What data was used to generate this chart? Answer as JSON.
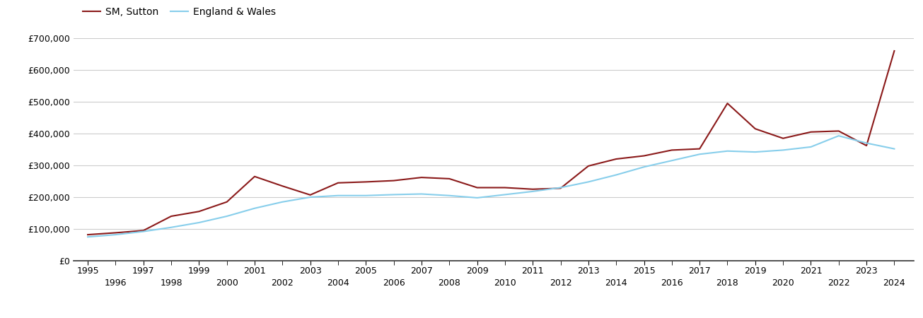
{
  "title": "",
  "legend_labels": [
    "SM, Sutton",
    "England & Wales"
  ],
  "line_colors": [
    "#8B1A1A",
    "#87CEEB"
  ],
  "background_color": "#ffffff",
  "grid_color": "#cccccc",
  "ylabel": "",
  "xlabel": "",
  "ylim": [
    0,
    700000
  ],
  "ytick_values": [
    0,
    100000,
    200000,
    300000,
    400000,
    500000,
    600000,
    700000
  ],
  "ytick_labels": [
    "£0",
    "£100,000",
    "£200,000",
    "£300,000",
    "£400,000",
    "£500,000",
    "£600,000",
    "£700,000"
  ],
  "x_major_ticks": [
    1995,
    1997,
    1999,
    2001,
    2003,
    2005,
    2007,
    2009,
    2011,
    2013,
    2015,
    2017,
    2019,
    2021,
    2023
  ],
  "x_minor_ticks": [
    1996,
    1998,
    2000,
    2002,
    2004,
    2006,
    2008,
    2010,
    2012,
    2014,
    2016,
    2018,
    2020,
    2022,
    2024
  ],
  "sutton_years": [
    1995,
    1996,
    1997,
    1998,
    1999,
    2000,
    2001,
    2002,
    2003,
    2004,
    2005,
    2006,
    2007,
    2008,
    2009,
    2010,
    2011,
    2012,
    2013,
    2014,
    2015,
    2016,
    2017,
    2018,
    2019,
    2020,
    2021,
    2022,
    2023,
    2024
  ],
  "sutton_values": [
    82000,
    88000,
    95000,
    140000,
    155000,
    185000,
    265000,
    235000,
    207000,
    245000,
    248000,
    252000,
    262000,
    258000,
    230000,
    230000,
    225000,
    228000,
    298000,
    320000,
    330000,
    348000,
    352000,
    495000,
    415000,
    385000,
    405000,
    408000,
    362000,
    660000
  ],
  "ew_years": [
    1995,
    1996,
    1997,
    1998,
    1999,
    2000,
    2001,
    2002,
    2003,
    2004,
    2005,
    2006,
    2007,
    2008,
    2009,
    2010,
    2011,
    2012,
    2013,
    2014,
    2015,
    2016,
    2017,
    2018,
    2019,
    2020,
    2021,
    2022,
    2023,
    2024
  ],
  "ew_values": [
    75000,
    82000,
    92000,
    105000,
    120000,
    140000,
    165000,
    185000,
    200000,
    205000,
    205000,
    208000,
    210000,
    205000,
    198000,
    208000,
    218000,
    230000,
    248000,
    270000,
    295000,
    315000,
    335000,
    345000,
    342000,
    348000,
    358000,
    393000,
    370000,
    352000
  ],
  "line_width": 1.5,
  "font_family": "DejaVu Sans",
  "tick_fontsize": 9,
  "legend_fontsize": 10,
  "xlim": [
    1994.5,
    2024.7
  ]
}
